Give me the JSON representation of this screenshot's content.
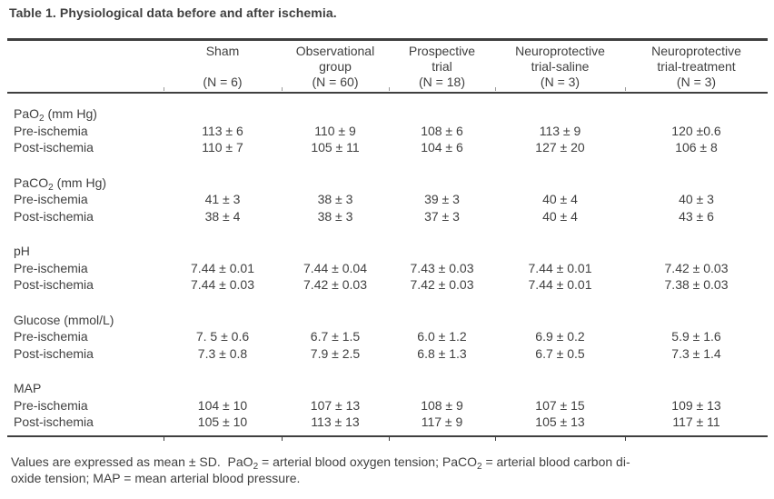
{
  "title": "Table 1. Physiological data before and after ischemia.",
  "table": {
    "columns": [
      {
        "line1": "Sham",
        "line2": "",
        "n": "(N = 6)"
      },
      {
        "line1": "Observational",
        "line2": "group",
        "n": "(N = 60)"
      },
      {
        "line1": "Prospective",
        "line2": "trial",
        "n": "(N = 18)"
      },
      {
        "line1": "Neuroprotective",
        "line2": "trial-saline",
        "n": "(N = 3)"
      },
      {
        "line1": "Neuroprotective",
        "line2": "trial-treatment",
        "n": "(N = 3)"
      }
    ],
    "groups": [
      {
        "label_base": "PaO",
        "label_sub": "2",
        "label_rest": " (mm Hg)",
        "rows": [
          {
            "label": "Pre-ischemia",
            "values": [
              "113 ± 6",
              "110 ± 9",
              "108 ± 6",
              "113 ± 9",
              "120 ±0.6"
            ]
          },
          {
            "label": "Post-ischemia",
            "values": [
              "110 ± 7",
              "105 ± 11",
              "104 ± 6",
              "127 ± 20",
              "106 ± 8"
            ]
          }
        ]
      },
      {
        "label_base": "PaCO",
        "label_sub": "2",
        "label_rest": " (mm Hg)",
        "rows": [
          {
            "label": "Pre-ischemia",
            "values": [
              "41 ± 3",
              "38 ± 3",
              "39 ± 3",
              "40 ± 4",
              "40 ± 3"
            ]
          },
          {
            "label": "Post-ischemia",
            "values": [
              "38 ± 4",
              "38 ± 3",
              "37 ± 3",
              "40 ± 4",
              "43 ± 6"
            ]
          }
        ]
      },
      {
        "label_base": "pH",
        "label_sub": "",
        "label_rest": "",
        "rows": [
          {
            "label": "Pre-ischemia",
            "values": [
              "7.44 ± 0.01",
              "7.44 ± 0.04",
              "7.43 ± 0.03",
              "7.44 ± 0.01",
              "7.42 ± 0.03"
            ]
          },
          {
            "label": "Post-ischemia",
            "values": [
              "7.44 ± 0.03",
              "7.42 ± 0.03",
              "7.42 ± 0.03",
              "7.44 ± 0.01",
              "7.38 ± 0.03"
            ]
          }
        ]
      },
      {
        "label_base": "Glucose (mmol/L)",
        "label_sub": "",
        "label_rest": "",
        "rows": [
          {
            "label": "Pre-ischemia",
            "values": [
              "7. 5 ± 0.6",
              "6.7 ± 1.5",
              "6.0 ± 1.2",
              "6.9 ± 0.2",
              "5.9 ± 1.6"
            ]
          },
          {
            "label": "Post-ischemia",
            "values": [
              "7.3 ± 0.8",
              "7.9 ± 2.5",
              "6.8 ± 1.3",
              "6.7 ± 0.5",
              "7.3 ± 1.4"
            ]
          }
        ]
      },
      {
        "label_base": "MAP",
        "label_sub": "",
        "label_rest": "",
        "rows": [
          {
            "label": "Pre-ischemia",
            "values": [
              "104 ± 10",
              "107 ± 13",
              "108 ± 9",
              "107 ± 15",
              "109 ± 13"
            ]
          },
          {
            "label": "Post-ischemia",
            "values": [
              "105 ± 10",
              "113 ± 13",
              "117 ± 9",
              "105 ± 13",
              "117 ± 11"
            ]
          }
        ]
      }
    ]
  },
  "footnote": {
    "t1": "Values are expressed as mean ± SD.  PaO",
    "s1": "2",
    "t2": " = arterial blood oxygen tension; PaCO",
    "s2": "2",
    "t3": " = arterial blood carbon di-",
    "t4": "oxide tension; MAP = mean arterial blood pressure."
  }
}
